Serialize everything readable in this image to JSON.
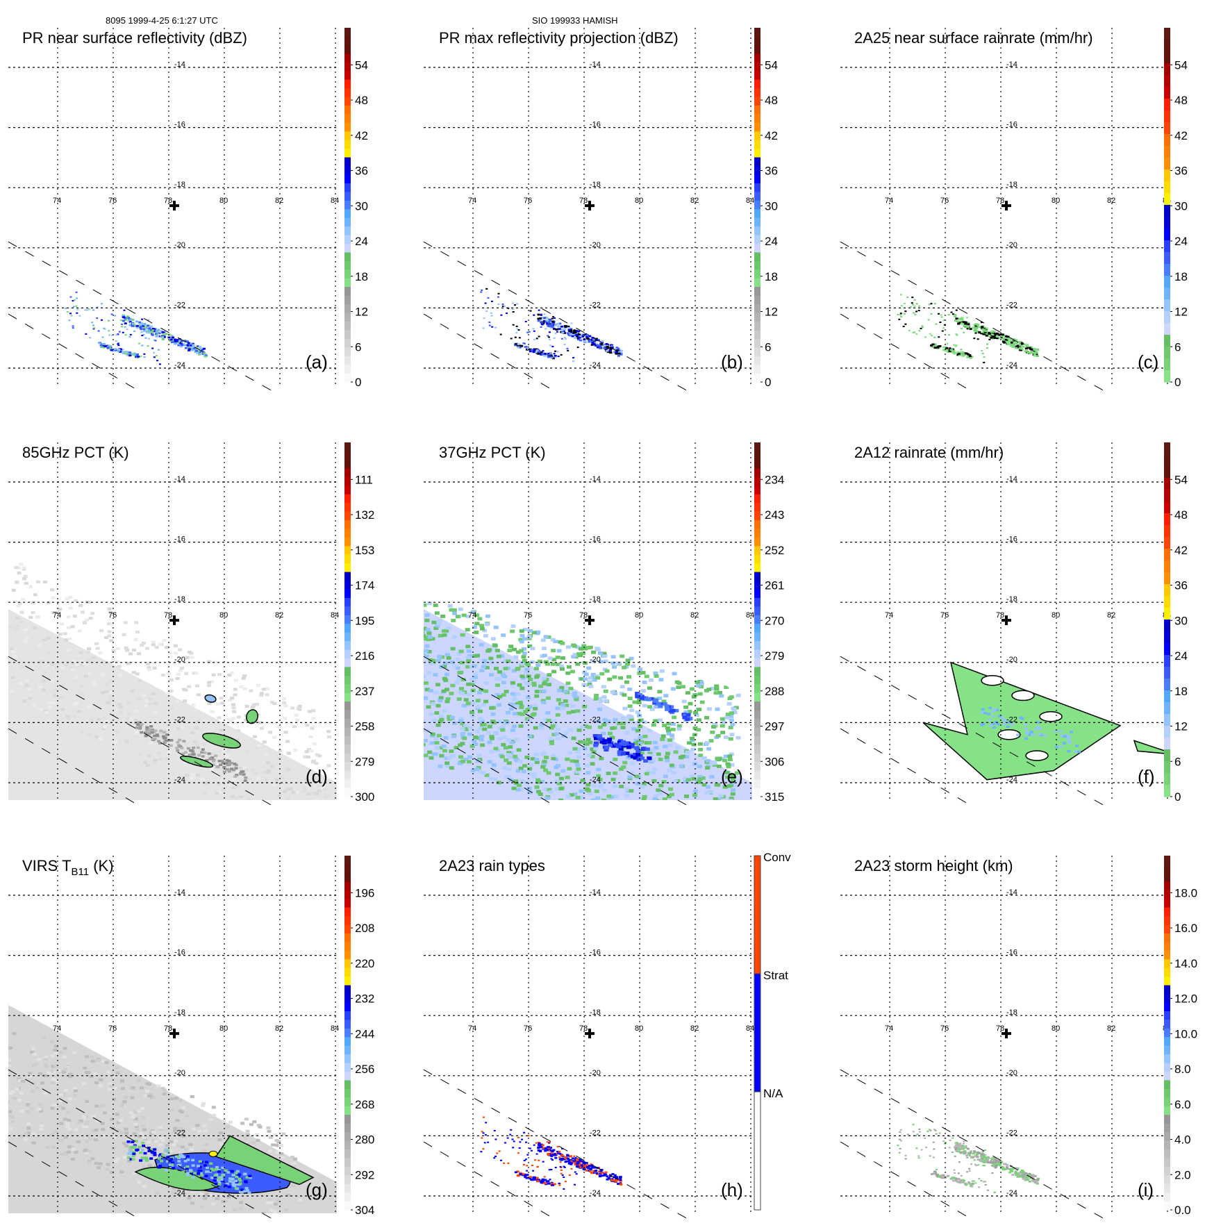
{
  "header": {
    "left": "8095 1999-4-25 6:1:27 UTC",
    "center": "SIO 199933 HAMISH"
  },
  "chart_data": [
    {
      "type": "heatmap",
      "panel": "(a)",
      "title": "PR near surface reflectivity (dBZ)",
      "colorbar": {
        "ticks": [
          "0",
          "6",
          "12",
          "18",
          "24",
          "30",
          "36",
          "42",
          "48",
          "54"
        ],
        "range": [
          0,
          60
        ],
        "kind": "reflectivity"
      },
      "field": "pr_surface",
      "x_ticks": [
        "74",
        "76",
        "78",
        "80",
        "82",
        "84"
      ],
      "y_ticks": [
        "-14",
        "-16",
        "-18",
        "-20",
        "-22",
        "-24"
      ],
      "storm_center": {
        "lon": 78.2,
        "lat": -18.6
      },
      "swath_edges": "dashed"
    },
    {
      "type": "heatmap",
      "panel": "(b)",
      "title": "PR max reflectivity projection (dBZ)",
      "colorbar": {
        "ticks": [
          "0",
          "6",
          "12",
          "18",
          "24",
          "30",
          "36",
          "42",
          "48",
          "54"
        ],
        "range": [
          0,
          60
        ],
        "kind": "reflectivity"
      },
      "field": "pr_max",
      "x_ticks": [
        "74",
        "76",
        "78",
        "80",
        "82",
        "84"
      ],
      "y_ticks": [
        "-14",
        "-16",
        "-18",
        "-20",
        "-22",
        "-24"
      ],
      "storm_center": {
        "lon": 78.2,
        "lat": -18.6
      },
      "swath_edges": "dashed"
    },
    {
      "type": "heatmap",
      "panel": "(c)",
      "title": "2A25 near surface rainrate (mm/hr)",
      "colorbar": {
        "ticks": [
          "0",
          "6",
          "12",
          "18",
          "24",
          "30",
          "36",
          "42",
          "48",
          "54"
        ],
        "range": [
          0,
          60
        ],
        "kind": "rainrate"
      },
      "field": "rain2a25",
      "x_ticks": [
        "74",
        "76",
        "78",
        "80",
        "82",
        "84"
      ],
      "y_ticks": [
        "-14",
        "-16",
        "-18",
        "-20",
        "-22",
        "-24"
      ],
      "storm_center": {
        "lon": 78.2,
        "lat": -18.6
      },
      "swath_edges": "dashed"
    },
    {
      "type": "heatmap",
      "panel": "(d)",
      "title": "85GHz PCT (K)",
      "colorbar": {
        "ticks": [
          "300",
          "279",
          "258",
          "237",
          "216",
          "195",
          "174",
          "153",
          "132",
          "111"
        ],
        "range": [
          300,
          90
        ],
        "kind": "reflectivity"
      },
      "field": "pct85",
      "x_ticks": [
        "74",
        "76",
        "78",
        "80",
        "82",
        "84"
      ],
      "y_ticks": [
        "-14",
        "-16",
        "-18",
        "-20",
        "-22",
        "-24"
      ],
      "storm_center": {
        "lon": 78.2,
        "lat": -18.6
      },
      "swath_edges": "dashed"
    },
    {
      "type": "heatmap",
      "panel": "(e)",
      "title": "37GHz PCT (K)",
      "colorbar": {
        "ticks": [
          "315",
          "306",
          "297",
          "288",
          "279",
          "270",
          "261",
          "252",
          "243",
          "234"
        ],
        "range": [
          315,
          225
        ],
        "kind": "reflectivity"
      },
      "field": "pct37",
      "x_ticks": [
        "74",
        "76",
        "78",
        "80",
        "82",
        "84"
      ],
      "y_ticks": [
        "-14",
        "-16",
        "-18",
        "-20",
        "-22",
        "-24"
      ],
      "storm_center": {
        "lon": 78.2,
        "lat": -18.6
      },
      "swath_edges": "dashed"
    },
    {
      "type": "heatmap",
      "panel": "(f)",
      "title": "2A12 rainrate (mm/hr)",
      "colorbar": {
        "ticks": [
          "0",
          "6",
          "12",
          "18",
          "24",
          "30",
          "36",
          "42",
          "48",
          "54"
        ],
        "range": [
          0,
          60
        ],
        "kind": "rainrate"
      },
      "field": "rain2a12",
      "x_ticks": [
        "74",
        "76",
        "78",
        "80",
        "82",
        "84"
      ],
      "y_ticks": [
        "-14",
        "-16",
        "-18",
        "-20",
        "-22",
        "-24"
      ],
      "storm_center": {
        "lon": 78.2,
        "lat": -18.6
      },
      "swath_edges": "dashed"
    },
    {
      "type": "heatmap",
      "panel": "(g)",
      "title": "VIRS T",
      "title_sub": "B11",
      "title_suffix": " (K)",
      "colorbar": {
        "ticks": [
          "304",
          "292",
          "280",
          "268",
          "256",
          "244",
          "232",
          "220",
          "208",
          "196"
        ],
        "range": [
          304,
          184
        ],
        "kind": "reflectivity"
      },
      "field": "virs",
      "x_ticks": [
        "74",
        "76",
        "78",
        "80",
        "82",
        "84"
      ],
      "y_ticks": [
        "-14",
        "-16",
        "-18",
        "-20",
        "-22",
        "-24"
      ],
      "storm_center": {
        "lon": 78.2,
        "lat": -18.6
      },
      "swath_edges": "dashed"
    },
    {
      "type": "heatmap",
      "panel": "(h)",
      "title": "2A23 rain types",
      "colorbar": {
        "ticks": [
          "N/A",
          "Strat",
          "Conv"
        ],
        "kind": "categorical",
        "colors": [
          "#ffffff",
          "#0000ff",
          "#ff4500"
        ]
      },
      "field": "raintype",
      "x_ticks": [
        "74",
        "76",
        "78",
        "80",
        "82",
        "84"
      ],
      "y_ticks": [
        "-14",
        "-16",
        "-18",
        "-20",
        "-22",
        "-24"
      ],
      "storm_center": {
        "lon": 78.2,
        "lat": -18.6
      },
      "swath_edges": "dashed"
    },
    {
      "type": "heatmap",
      "panel": "(i)",
      "title": "2A23 storm height (km)",
      "colorbar": {
        "ticks": [
          "0.0",
          "2.0",
          "4.0",
          "6.0",
          "8.0",
          "10.0",
          "12.0",
          "14.0",
          "16.0",
          "18.0"
        ],
        "range": [
          0,
          20
        ],
        "kind": "reflectivity"
      },
      "field": "height",
      "x_ticks": [
        "74",
        "76",
        "78",
        "80",
        "82",
        "84"
      ],
      "y_ticks": [
        "-14",
        "-16",
        "-18",
        "-20",
        "-22",
        "-24"
      ],
      "storm_center": {
        "lon": 78.2,
        "lat": -18.6
      },
      "swath_edges": "dashed"
    }
  ]
}
